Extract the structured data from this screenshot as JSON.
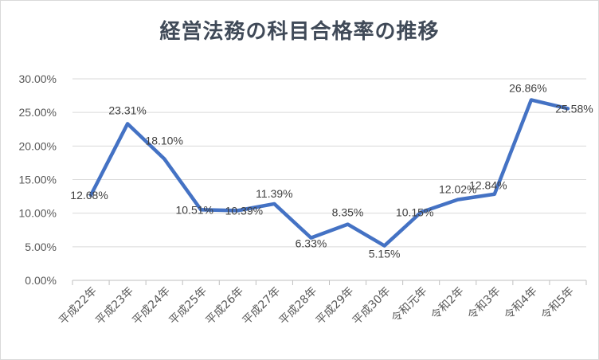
{
  "chart_data": {
    "type": "line",
    "title": "経営法務の科目合格率の推移",
    "xlabel": "",
    "ylabel": "",
    "categories": [
      "平成22年",
      "平成23年",
      "平成24年",
      "平成25年",
      "平成26年",
      "平成27年",
      "平成28年",
      "平成29年",
      "平成30年",
      "令和元年",
      "令和2年",
      "令和3年",
      "令和4年",
      "令和5年"
    ],
    "series": [
      {
        "values": [
          12.68,
          23.31,
          18.1,
          10.51,
          10.39,
          11.39,
          6.33,
          8.35,
          5.15,
          10.15,
          12.02,
          12.84,
          26.86,
          25.58
        ],
        "labels": [
          "12.68%",
          "23.31%",
          "18.10%",
          "10.51%",
          "10.39%",
          "11.39%",
          "6.33%",
          "8.35%",
          "5.15%",
          "10.15%",
          "12.02%",
          "12.84%",
          "26.86%",
          "25.58%"
        ],
        "color": "#4472c4"
      }
    ],
    "y_ticks": [
      "0.00%",
      "5.00%",
      "10.00%",
      "15.00%",
      "20.00%",
      "25.00%",
      "30.00%"
    ],
    "ylim": [
      0,
      30
    ],
    "grid": true,
    "legend": "none"
  }
}
